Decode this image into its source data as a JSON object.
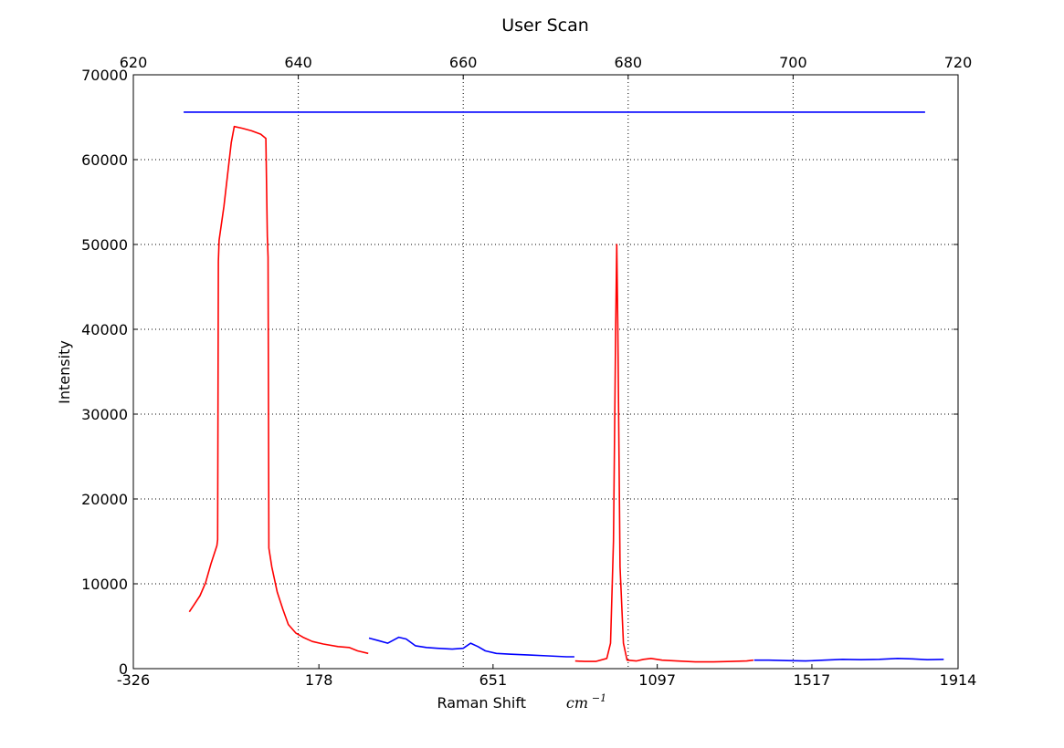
{
  "chart_data": {
    "type": "line",
    "title": "User Scan",
    "xlabel": "Raman Shift",
    "xlabel_unit_base": "cm",
    "xlabel_unit_exp": "−1",
    "ylabel": "Intensity",
    "ylim": [
      0,
      70000
    ],
    "yticks": [
      "0",
      "10000",
      "20000",
      "30000",
      "40000",
      "50000",
      "60000",
      "70000"
    ],
    "xlim_bottom": [
      -326,
      1914
    ],
    "xticks_bottom": [
      "-326",
      "178",
      "651",
      "1097",
      "1517",
      "1914"
    ],
    "xlim_top": [
      620,
      720
    ],
    "xticks_top": [
      "620",
      "640",
      "660",
      "680",
      "700",
      "720"
    ],
    "grid": true,
    "series": [
      {
        "color": "#0000ff",
        "axis": "top",
        "points": [
          [
            626.1,
            65600
          ],
          [
            716.0,
            65600
          ]
        ]
      },
      {
        "color": "#ff0000",
        "axis": "bottom",
        "points": [
          [
            -174,
            6700
          ],
          [
            -160,
            7600
          ],
          [
            -145,
            8600
          ],
          [
            -130,
            10100
          ],
          [
            -115,
            12400
          ],
          [
            -99,
            14500
          ],
          [
            -97,
            15200
          ],
          [
            -95,
            48000
          ],
          [
            -93,
            50500
          ],
          [
            -80,
            54500
          ],
          [
            -68,
            59000
          ],
          [
            -60,
            62000
          ],
          [
            -52,
            63900
          ],
          [
            -30,
            63700
          ],
          [
            -5,
            63400
          ],
          [
            20,
            63000
          ],
          [
            34,
            62500
          ],
          [
            38,
            51000
          ],
          [
            40,
            48500
          ],
          [
            42,
            14200
          ],
          [
            50,
            12000
          ],
          [
            65,
            9000
          ],
          [
            80,
            7000
          ],
          [
            95,
            5200
          ],
          [
            115,
            4200
          ],
          [
            135,
            3700
          ],
          [
            160,
            3200
          ],
          [
            190,
            2900
          ],
          [
            230,
            2600
          ],
          [
            260,
            2500
          ],
          [
            283,
            2100
          ],
          [
            312,
            1800
          ]
        ]
      },
      {
        "color": "#0000ff",
        "axis": "bottom",
        "points": [
          [
            314,
            3600
          ],
          [
            340,
            3300
          ],
          [
            365,
            3000
          ],
          [
            395,
            3700
          ],
          [
            415,
            3500
          ],
          [
            440,
            2700
          ],
          [
            470,
            2500
          ],
          [
            500,
            2400
          ],
          [
            540,
            2300
          ],
          [
            570,
            2400
          ],
          [
            590,
            3000
          ],
          [
            610,
            2600
          ],
          [
            630,
            2100
          ],
          [
            660,
            1800
          ],
          [
            700,
            1700
          ],
          [
            750,
            1600
          ],
          [
            800,
            1500
          ],
          [
            850,
            1400
          ],
          [
            872,
            1400
          ]
        ]
      },
      {
        "color": "#ff0000",
        "axis": "bottom",
        "points": [
          [
            874,
            900
          ],
          [
            900,
            850
          ],
          [
            930,
            850
          ],
          [
            960,
            1200
          ],
          [
            970,
            3000
          ],
          [
            978,
            15000
          ],
          [
            984,
            40000
          ],
          [
            987,
            50000
          ],
          [
            990,
            40000
          ],
          [
            996,
            12000
          ],
          [
            1005,
            3000
          ],
          [
            1015,
            1000
          ],
          [
            1040,
            900
          ],
          [
            1060,
            1100
          ],
          [
            1080,
            1200
          ],
          [
            1110,
            1000
          ],
          [
            1150,
            900
          ],
          [
            1200,
            800
          ],
          [
            1250,
            800
          ],
          [
            1300,
            850
          ],
          [
            1340,
            900
          ],
          [
            1358,
            1000
          ]
        ]
      },
      {
        "color": "#0000ff",
        "axis": "bottom",
        "points": [
          [
            1360,
            1000
          ],
          [
            1400,
            1000
          ],
          [
            1450,
            950
          ],
          [
            1500,
            900
          ],
          [
            1550,
            1000
          ],
          [
            1600,
            1100
          ],
          [
            1650,
            1050
          ],
          [
            1700,
            1100
          ],
          [
            1750,
            1200
          ],
          [
            1790,
            1150
          ],
          [
            1830,
            1050
          ],
          [
            1875,
            1100
          ]
        ]
      }
    ]
  }
}
